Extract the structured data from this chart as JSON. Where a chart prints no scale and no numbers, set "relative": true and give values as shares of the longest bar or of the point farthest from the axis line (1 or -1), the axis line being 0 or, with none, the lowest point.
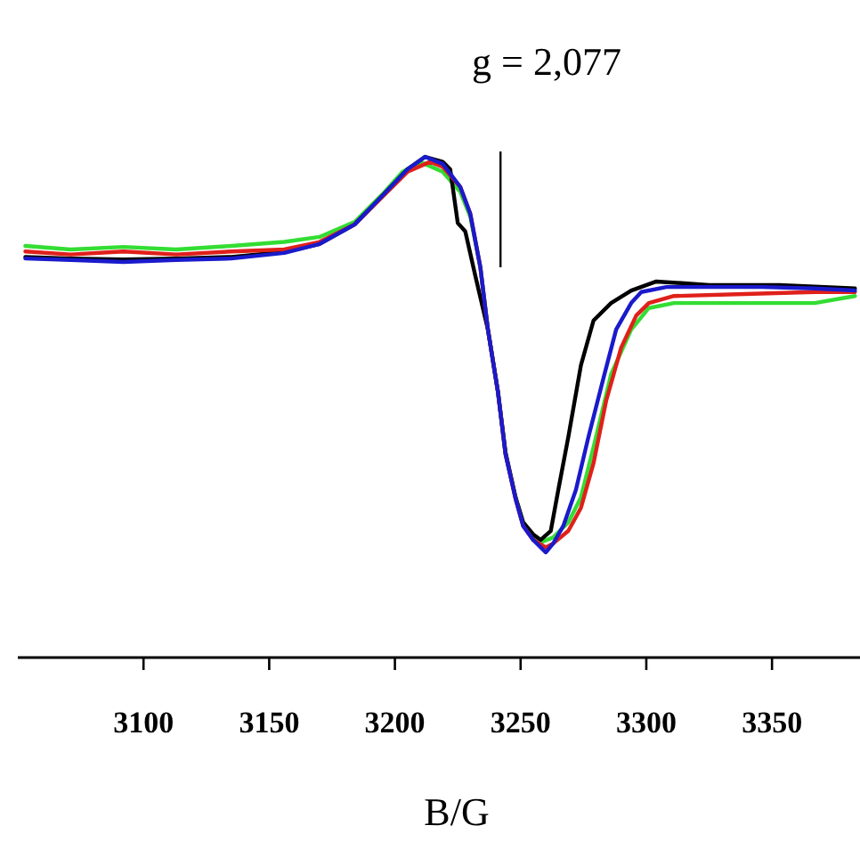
{
  "chart_data": {
    "type": "line",
    "relative": true,
    "title": "g = 2,077",
    "xlabel": "B/G",
    "xlim": [
      3050,
      3385
    ],
    "xticks": [
      3100,
      3150,
      3200,
      3250,
      3300,
      3350
    ],
    "grid": false,
    "ref_lines": [
      {
        "axis": "x",
        "value": 3242,
        "color": "#000000"
      }
    ],
    "series": [
      {
        "color": "#33dd33",
        "x": [
          3053,
          3071,
          3092,
          3113,
          3135,
          3156,
          3170,
          3184,
          3195,
          3203,
          3210,
          3219,
          3226,
          3230,
          3234,
          3237,
          3241,
          3244,
          3248,
          3251,
          3255,
          3258,
          3263,
          3269,
          3274,
          3279,
          3286,
          3294,
          3301,
          3311,
          3339,
          3367,
          3383
        ],
        "values": [
          0.822,
          0.815,
          0.82,
          0.815,
          0.822,
          0.83,
          0.84,
          0.87,
          0.925,
          0.97,
          0.99,
          0.97,
          0.93,
          0.88,
          0.779,
          0.655,
          0.53,
          0.406,
          0.32,
          0.27,
          0.24,
          0.23,
          0.24,
          0.27,
          0.32,
          0.42,
          0.566,
          0.655,
          0.698,
          0.708,
          0.708,
          0.708,
          0.722
        ]
      },
      {
        "color": "#000000",
        "x": [
          3053,
          3071,
          3092,
          3113,
          3135,
          3156,
          3170,
          3184,
          3195,
          3205,
          3212,
          3219,
          3222,
          3225,
          3228,
          3232,
          3237,
          3241,
          3244,
          3248,
          3251,
          3255,
          3258,
          3262,
          3265,
          3269,
          3274,
          3279,
          3286,
          3294,
          3304,
          3325,
          3353,
          3383
        ],
        "values": [
          0.8,
          0.797,
          0.795,
          0.797,
          0.8,
          0.81,
          0.826,
          0.865,
          0.922,
          0.975,
          1,
          0.99,
          0.975,
          0.868,
          0.851,
          0.762,
          0.655,
          0.53,
          0.41,
          0.32,
          0.27,
          0.246,
          0.235,
          0.253,
          0.335,
          0.441,
          0.584,
          0.673,
          0.708,
          0.733,
          0.751,
          0.744,
          0.744,
          0.737
        ]
      },
      {
        "color": "#e0201a",
        "x": [
          3053,
          3071,
          3092,
          3113,
          3135,
          3156,
          3170,
          3184,
          3195,
          3205,
          3214,
          3219,
          3226,
          3230,
          3234,
          3237,
          3241,
          3244,
          3248,
          3251,
          3255,
          3260,
          3263,
          3269,
          3274,
          3279,
          3284,
          3290,
          3296,
          3301,
          3311,
          3339,
          3367,
          3383
        ],
        "values": [
          0.811,
          0.805,
          0.811,
          0.805,
          0.811,
          0.815,
          0.83,
          0.865,
          0.92,
          0.97,
          0.99,
          0.98,
          0.94,
          0.886,
          0.779,
          0.655,
          0.53,
          0.406,
          0.317,
          0.263,
          0.235,
          0.22,
          0.228,
          0.253,
          0.299,
          0.388,
          0.512,
          0.619,
          0.683,
          0.708,
          0.722,
          0.726,
          0.73,
          0.73
        ]
      },
      {
        "color": "#1a1acc",
        "x": [
          3053,
          3071,
          3092,
          3113,
          3135,
          3156,
          3170,
          3184,
          3195,
          3205,
          3212,
          3219,
          3226,
          3230,
          3234,
          3237,
          3241,
          3244,
          3248,
          3251,
          3255,
          3260,
          3263,
          3267,
          3272,
          3277,
          3283,
          3288,
          3294,
          3298,
          3308,
          3325,
          3346,
          3367,
          3383
        ],
        "values": [
          0.797,
          0.794,
          0.79,
          0.794,
          0.797,
          0.808,
          0.826,
          0.865,
          0.922,
          0.975,
          1,
          0.986,
          0.94,
          0.886,
          0.779,
          0.655,
          0.53,
          0.406,
          0.317,
          0.263,
          0.235,
          0.21,
          0.228,
          0.263,
          0.335,
          0.441,
          0.559,
          0.655,
          0.708,
          0.73,
          0.74,
          0.74,
          0.74,
          0.737,
          0.733
        ]
      }
    ]
  }
}
